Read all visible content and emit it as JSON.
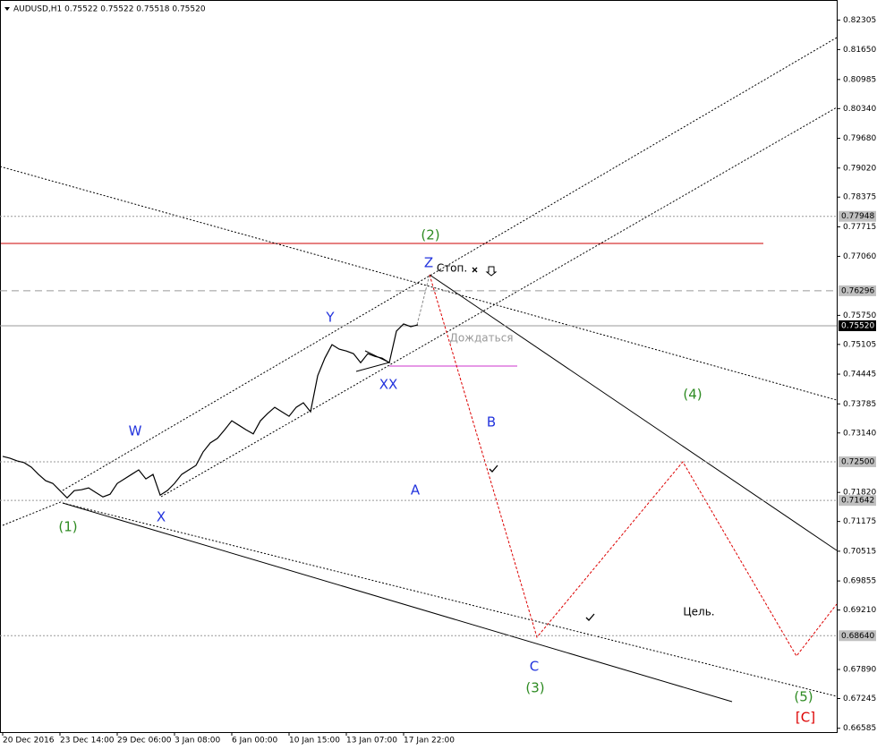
{
  "chart_data": {
    "type": "line",
    "title": "AUDUSD,H1  0.75522 0.75522 0.75518 0.75520",
    "categories": [
      "20 Dec 2016",
      null,
      null,
      null,
      null,
      null,
      null,
      null,
      "23 Dec 14:00",
      null,
      null,
      null,
      null,
      null,
      null,
      null,
      "29 Dec 06:00",
      null,
      null,
      null,
      null,
      null,
      null,
      null,
      "3 Jan 08:00",
      null,
      null,
      null,
      null,
      null,
      null,
      null,
      "6 Jan 00:00",
      null,
      null,
      null,
      null,
      null,
      null,
      null,
      "10 Jan 15:00",
      null,
      null,
      null,
      null,
      null,
      null,
      null,
      "13 Jan 07:00",
      null,
      null,
      null,
      null,
      null,
      null,
      null,
      "17 Jan 22:00",
      null,
      null
    ],
    "values": [
      0.7262,
      0.7258,
      0.7252,
      0.7248,
      0.7238,
      0.7222,
      0.7208,
      0.7202,
      0.7186,
      0.717,
      0.7186,
      0.7188,
      0.7192,
      0.7182,
      0.7172,
      0.7178,
      0.7202,
      0.7212,
      0.7222,
      0.7232,
      0.7212,
      0.7222,
      0.7176,
      0.7186,
      0.7202,
      0.7222,
      0.7232,
      0.7242,
      0.7272,
      0.7292,
      0.7302,
      0.7321,
      0.7341,
      0.7331,
      0.7321,
      0.7312,
      0.7341,
      0.7357,
      0.7371,
      0.7361,
      0.7351,
      0.7371,
      0.7381,
      0.7361,
      0.7441,
      0.748,
      0.751,
      0.75,
      0.7496,
      0.749,
      0.747,
      0.749,
      0.7484,
      0.748,
      0.747,
      0.754,
      0.7556,
      0.755,
      0.7554
    ],
    "color": "#000000",
    "ylim": [
      0.665,
      0.8275
    ],
    "yticks": [
      0.82305,
      {
        "value": 0.8165,
        "label": "0.81650"
      },
      0.80985,
      {
        "value": 0.8034,
        "label": "0.80340"
      },
      {
        "value": 0.7968,
        "label": "0.79680"
      },
      {
        "value": 0.7902,
        "label": "0.79020"
      },
      0.78375,
      0.77715,
      {
        "value": 0.7706,
        "label": "0.77060"
      },
      {
        "value": 0.7575,
        "label": "0.75750"
      },
      0.75105,
      0.74445,
      0.73785,
      {
        "value": 0.7314,
        "label": "0.73140"
      },
      {
        "value": 0.7182,
        "label": "0.71820"
      },
      0.71175,
      0.70515,
      0.69855,
      {
        "value": 0.6921,
        "label": "0.69210"
      },
      {
        "value": 0.6789,
        "label": "0.67890"
      },
      0.67245,
      0.66585
    ],
    "grid": false,
    "levels": [
      {
        "value": 0.77948,
        "label": "0.77948",
        "line": "dotted",
        "box_color": "#c0c0c0"
      },
      {
        "value": 0.76296,
        "label": "0.76296",
        "line": "dashed",
        "box_color": "#c0c0c0"
      },
      {
        "value": 0.7552,
        "label": "0.75520",
        "line": "solid",
        "box_color": "#000000"
      },
      {
        "value": 0.725,
        "label": "0.72500",
        "line": "dotted",
        "box_color": "#c0c0c0"
      },
      {
        "value": 0.71642,
        "label": "0.71642",
        "line": "dotted",
        "box_color": "#c0c0c0"
      },
      {
        "value": 0.6864,
        "label": "0.68640",
        "line": "dotted",
        "box_color": "#c0c0c0"
      }
    ],
    "annotations": [
      {
        "text": "(2)",
        "color": "#2e8b22"
      },
      {
        "text": "Z",
        "color": "#2233dd"
      },
      {
        "text": "Стоп.",
        "color": "#000000"
      },
      {
        "text": "Y",
        "color": "#2233dd"
      },
      {
        "text": "Дождаться",
        "color": "#999999"
      },
      {
        "text": "XX",
        "color": "#2233dd"
      },
      {
        "text": "W",
        "color": "#2233dd"
      },
      {
        "text": "B",
        "color": "#2233dd"
      },
      {
        "text": "(4)",
        "color": "#2e8b22"
      },
      {
        "text": "A",
        "color": "#2233dd"
      },
      {
        "text": "(1)",
        "color": "#2e8b22"
      },
      {
        "text": "X",
        "color": "#2233dd"
      },
      {
        "text": "Цель.",
        "color": "#000000"
      },
      {
        "text": "C",
        "color": "#2233dd"
      },
      {
        "text": "(3)",
        "color": "#2e8b22"
      },
      {
        "text": "(5)",
        "color": "#2e8b22"
      },
      {
        "text": "[C]",
        "color": "#dd0000"
      }
    ]
  }
}
